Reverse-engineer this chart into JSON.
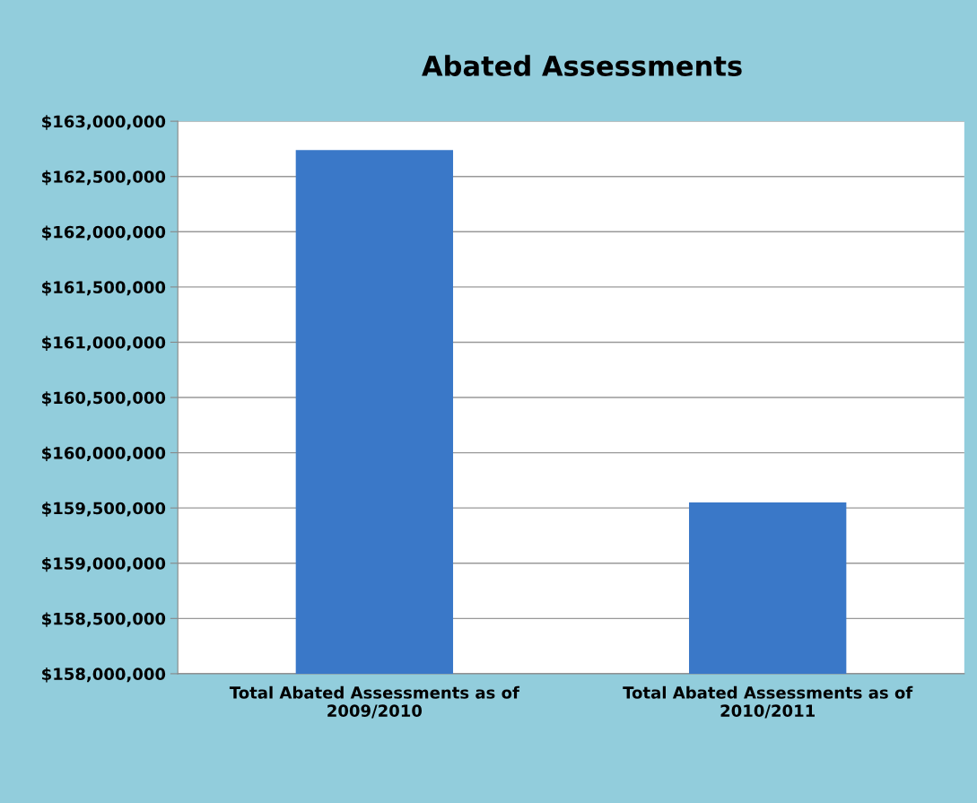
{
  "chart_data": {
    "type": "bar",
    "title": "Abated Assessments",
    "categories": [
      "Total Abated Assessments as of\n2009/2010",
      "Total Abated Assessments as of\n2010/2011"
    ],
    "values": [
      162740000,
      159550000
    ],
    "color": "#3a78c8",
    "ylim": [
      158000000,
      163000000
    ],
    "yticks": [
      {
        "value": 158000000,
        "label": "$158,000,000"
      },
      {
        "value": 158500000,
        "label": "$158,500,000"
      },
      {
        "value": 159000000,
        "label": "$159,000,000"
      },
      {
        "value": 159500000,
        "label": "$159,500,000"
      },
      {
        "value": 160000000,
        "label": "$160,000,000"
      },
      {
        "value": 160500000,
        "label": "$160,500,000"
      },
      {
        "value": 161000000,
        "label": "$161,000,000"
      },
      {
        "value": 161500000,
        "label": "$161,500,000"
      },
      {
        "value": 162000000,
        "label": "$162,000,000"
      },
      {
        "value": 162500000,
        "label": "$162,500,000"
      },
      {
        "value": 163000000,
        "label": "$163,000,000"
      }
    ],
    "grid": "y"
  }
}
